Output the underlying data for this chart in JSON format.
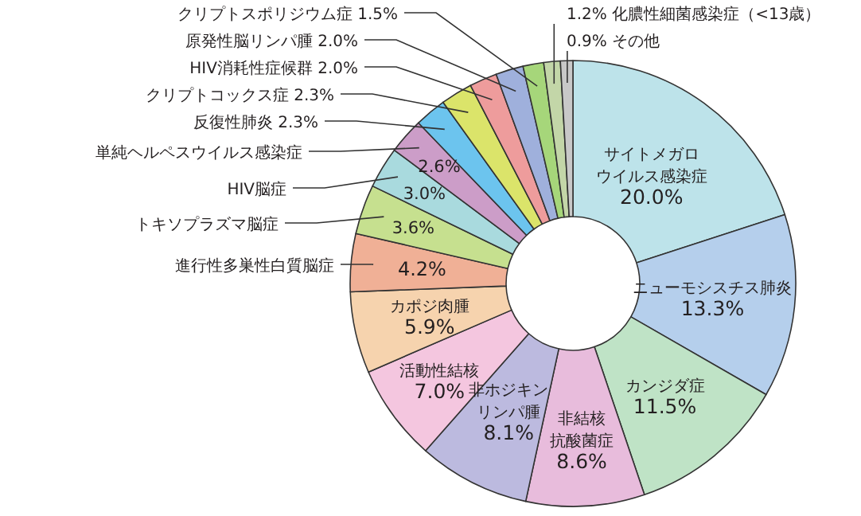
{
  "chart_data": {
    "type": "donut",
    "categories": [
      "サイトメガロウイルス感染症",
      "ニューモシスチス肺炎",
      "カンジダ症",
      "非結核抗酸菌症",
      "非ホジキンリンパ腫",
      "活動性結核",
      "カポジ肉腫",
      "進行性多巣性白質脳症",
      "トキソプラズマ脳症",
      "HIV脳症",
      "単純ヘルペスウイルス感染症",
      "反復性肺炎",
      "クリプトコックス症",
      "HIV消耗性症候群",
      "原発性脳リンパ腫",
      "クリプトスポリジウム症",
      "化膿性細菌感染症（<13歳）",
      "その他"
    ],
    "values": [
      20.0,
      13.3,
      11.5,
      8.6,
      8.1,
      7.0,
      5.9,
      4.2,
      3.6,
      3.0,
      2.6,
      2.3,
      2.3,
      2.0,
      2.0,
      1.5,
      1.2,
      0.9
    ],
    "value_labels": [
      "20.0%",
      "13.3%",
      "11.5%",
      "8.6%",
      "8.1%",
      "7.0%",
      "5.9%",
      "4.2%",
      "3.6%",
      "3.0%",
      "2.6%",
      "2.3%",
      "2.3%",
      "2.0%",
      "2.0%",
      "1.5%",
      "1.2%",
      "0.9%"
    ],
    "colors": [
      "#bde3ea",
      "#b5cfec",
      "#bfe3c6",
      "#e8bcdc",
      "#bcbadf",
      "#f4c6df",
      "#f6d3ae",
      "#f0b096",
      "#c6e08f",
      "#a9dade",
      "#cc9dc8",
      "#6cc4ee",
      "#dbe46a",
      "#ee9c9c",
      "#9fb0dc",
      "#a6d67a",
      "#c3d6a8",
      "#c8c8c8"
    ]
  }
}
